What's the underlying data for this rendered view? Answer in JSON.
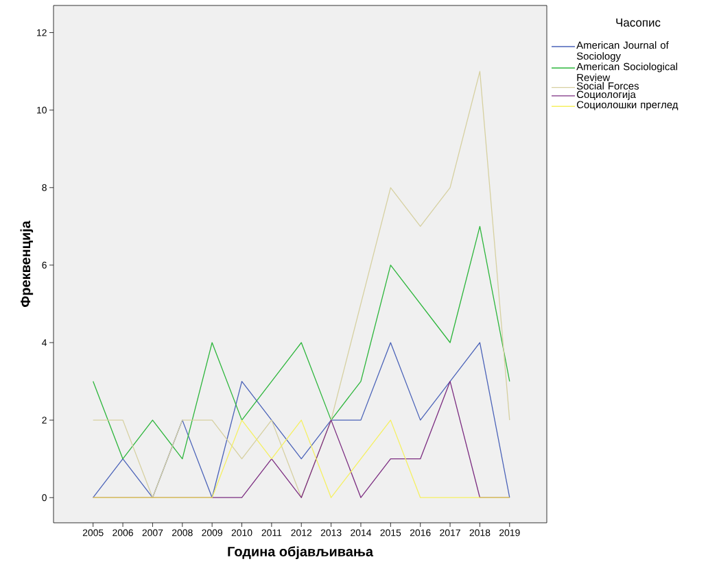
{
  "chart_data": {
    "type": "line",
    "xlabel": "Година објављивања",
    "ylabel": "Фреквенција",
    "legend_title": "Часопис",
    "categories": [
      "2005",
      "2006",
      "2007",
      "2008",
      "2009",
      "2010",
      "2011",
      "2012",
      "2013",
      "2014",
      "2015",
      "2016",
      "2017",
      "2018",
      "2019"
    ],
    "series": [
      {
        "name": "American Journal of Sociology",
        "color": "#4a62b8",
        "values": [
          0,
          1,
          0,
          2,
          0,
          3,
          2,
          1,
          2,
          2,
          4,
          2,
          3,
          4,
          0
        ]
      },
      {
        "name": "American Sociological Review",
        "color": "#2bb53a",
        "values": [
          3,
          1,
          2,
          1,
          4,
          2,
          3,
          4,
          2,
          3,
          6,
          5,
          4,
          7,
          3
        ]
      },
      {
        "name": "Social Forces",
        "color": "#d6d0a0",
        "values": [
          2,
          2,
          0,
          2,
          2,
          1,
          2,
          0,
          2,
          5,
          8,
          7,
          8,
          11,
          2
        ]
      },
      {
        "name": "Социологија",
        "color": "#7b2c80",
        "values": [
          0,
          0,
          0,
          0,
          0,
          0,
          1,
          0,
          2,
          0,
          1,
          1,
          3,
          0,
          0
        ]
      },
      {
        "name": "Социолошки преглед",
        "color": "#f5f060",
        "values": [
          0,
          0,
          0,
          0,
          0,
          2,
          1,
          2,
          0,
          1,
          2,
          0,
          0,
          0,
          0
        ]
      }
    ],
    "ylim": [
      -0.65,
      12.7
    ],
    "yticks": [
      0,
      2,
      4,
      6,
      8,
      10,
      12
    ],
    "grid": false,
    "legend": "right",
    "marker": "none",
    "line_style": "solid"
  }
}
